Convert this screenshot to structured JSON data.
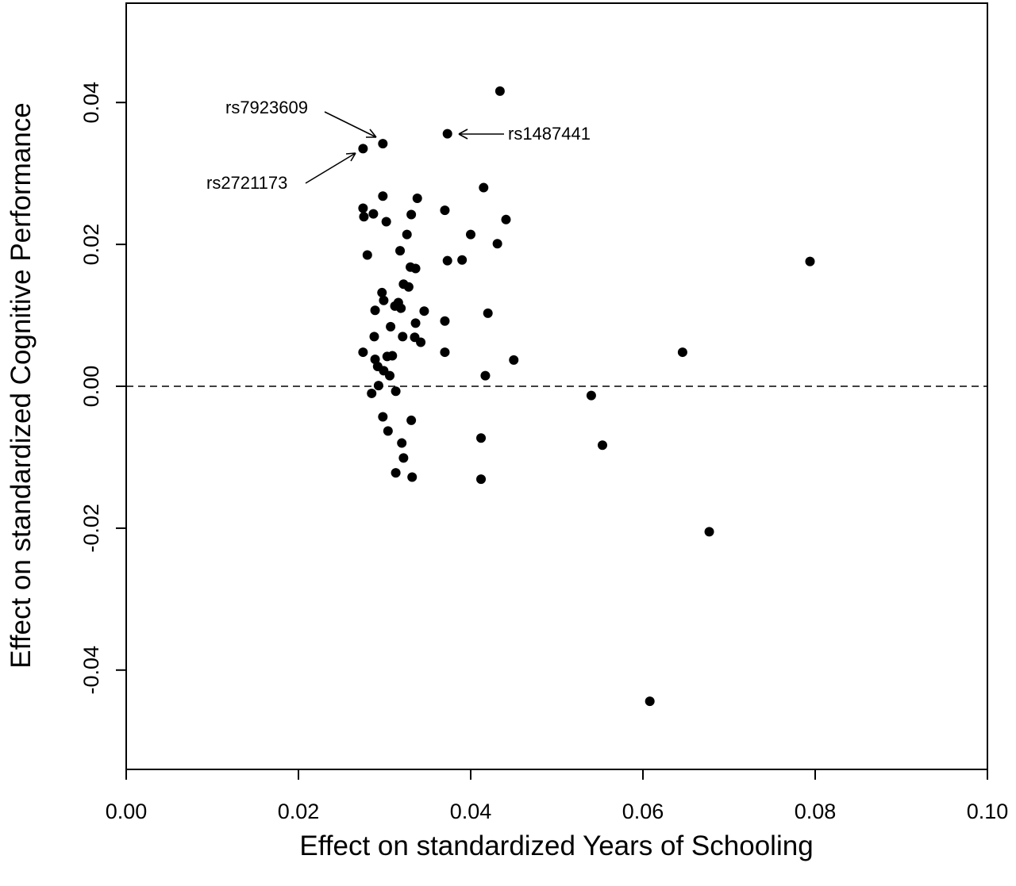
{
  "chart_data": {
    "type": "scatter",
    "xlabel": "Effect on standardized Years of Schooling",
    "ylabel": "Effect on standardized Cognitive Performance",
    "xlim": [
      0.0,
      0.1
    ],
    "ylim": [
      -0.054,
      0.054
    ],
    "xticks": [
      "0.00",
      "0.02",
      "0.04",
      "0.06",
      "0.08",
      "0.10"
    ],
    "yticks": [
      "-0.04",
      "-0.02",
      "0.00",
      "0.02",
      "0.04"
    ],
    "reference_line": {
      "y": 0.0,
      "style": "dashed"
    },
    "points": [
      [
        0.0434,
        0.0416
      ],
      [
        0.0373,
        0.0356
      ],
      [
        0.0298,
        0.0342
      ],
      [
        0.0275,
        0.0335
      ],
      [
        0.0415,
        0.028
      ],
      [
        0.0298,
        0.0268
      ],
      [
        0.0338,
        0.0265
      ],
      [
        0.0275,
        0.0251
      ],
      [
        0.037,
        0.0248
      ],
      [
        0.0287,
        0.0243
      ],
      [
        0.0276,
        0.0239
      ],
      [
        0.0331,
        0.0242
      ],
      [
        0.0441,
        0.0235
      ],
      [
        0.0302,
        0.0232
      ],
      [
        0.0326,
        0.0214
      ],
      [
        0.04,
        0.0214
      ],
      [
        0.0431,
        0.0201
      ],
      [
        0.0318,
        0.0191
      ],
      [
        0.028,
        0.0185
      ],
      [
        0.0373,
        0.0177
      ],
      [
        0.039,
        0.0178
      ],
      [
        0.033,
        0.0168
      ],
      [
        0.0336,
        0.0166
      ],
      [
        0.0794,
        0.0176
      ],
      [
        0.0322,
        0.0144
      ],
      [
        0.0328,
        0.014
      ],
      [
        0.0297,
        0.0132
      ],
      [
        0.0299,
        0.0121
      ],
      [
        0.0316,
        0.0118
      ],
      [
        0.0312,
        0.0113
      ],
      [
        0.0319,
        0.011
      ],
      [
        0.0289,
        0.0107
      ],
      [
        0.0346,
        0.0106
      ],
      [
        0.042,
        0.0103
      ],
      [
        0.037,
        0.0092
      ],
      [
        0.0336,
        0.0089
      ],
      [
        0.0307,
        0.0084
      ],
      [
        0.0288,
        0.007
      ],
      [
        0.0321,
        0.007
      ],
      [
        0.0335,
        0.0069
      ],
      [
        0.0342,
        0.0062
      ],
      [
        0.0275,
        0.0048
      ],
      [
        0.037,
        0.0048
      ],
      [
        0.0646,
        0.0048
      ],
      [
        0.0303,
        0.0042
      ],
      [
        0.0309,
        0.0043
      ],
      [
        0.0289,
        0.0038
      ],
      [
        0.045,
        0.0037
      ],
      [
        0.0292,
        0.0028
      ],
      [
        0.0299,
        0.0022
      ],
      [
        0.0306,
        0.0015
      ],
      [
        0.0417,
        0.0015
      ],
      [
        0.0293,
        0.0001
      ],
      [
        0.0285,
        -0.001
      ],
      [
        0.0313,
        -0.0007
      ],
      [
        0.054,
        -0.0013
      ],
      [
        0.0298,
        -0.0043
      ],
      [
        0.0331,
        -0.0048
      ],
      [
        0.0304,
        -0.0063
      ],
      [
        0.0412,
        -0.0073
      ],
      [
        0.032,
        -0.008
      ],
      [
        0.0553,
        -0.0083
      ],
      [
        0.0322,
        -0.0101
      ],
      [
        0.0313,
        -0.0122
      ],
      [
        0.0332,
        -0.0128
      ],
      [
        0.0412,
        -0.0131
      ],
      [
        0.0677,
        -0.0205
      ],
      [
        0.0608,
        -0.0444
      ]
    ],
    "annotations": [
      {
        "label": "rs7923609",
        "x": 0.0298,
        "y": 0.0342
      },
      {
        "label": "rs1487441",
        "x": 0.0373,
        "y": 0.0356
      },
      {
        "label": "rs2721173",
        "x": 0.0275,
        "y": 0.0335
      }
    ]
  }
}
